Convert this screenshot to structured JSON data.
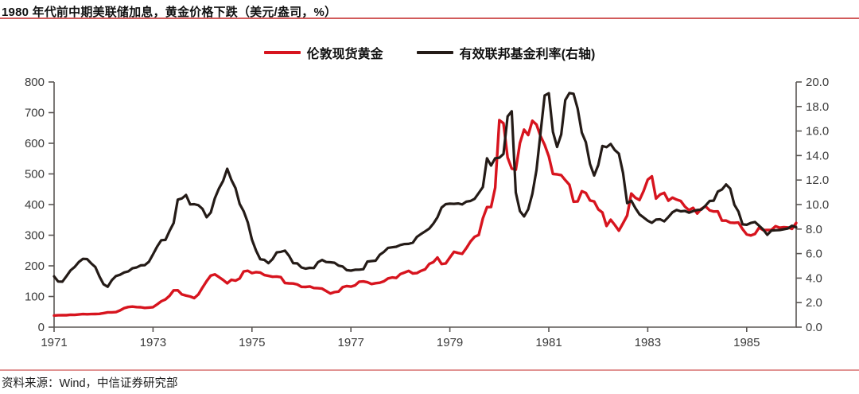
{
  "header": {
    "title": "1980 年代前中期美联储加息，黄金价格下跌（美元/盎司，%）"
  },
  "footer": {
    "source": "资料来源：Wind，中信证券研究部"
  },
  "legend": [
    {
      "label": "伦敦现货黄金",
      "color": "#d7141e"
    },
    {
      "label": "有效联邦基金利率(右轴)",
      "color": "#241b17"
    }
  ],
  "colors": {
    "accent_red": "#d7141e",
    "series_black": "#241b17",
    "title_rule": "#d15b5b",
    "footer_rule": "#e19392",
    "axis": "#5a5654",
    "tick_label": "#3a3a3a"
  },
  "chart_data": {
    "type": "line",
    "title": "1980 年代前中期美联储加息，黄金价格下跌（美元/盎司，%）",
    "grid": false,
    "legend_position": "top-center",
    "x": {
      "unit": "month",
      "start": "1971-01",
      "end": "1986-01",
      "tick_labels": [
        "1971",
        "1973",
        "1975",
        "1977",
        "1979",
        "1981",
        "1983",
        "1985"
      ]
    },
    "left_axis": {
      "min": 0,
      "max": 800,
      "tick_step": 100,
      "ticks": [
        0,
        100,
        200,
        300,
        400,
        500,
        600,
        700,
        800
      ],
      "applies_to": "伦敦现货黄金"
    },
    "right_axis": {
      "min": 0.0,
      "max": 20.0,
      "tick_step": 2.0,
      "ticks": [
        0.0,
        2.0,
        4.0,
        6.0,
        8.0,
        10.0,
        12.0,
        14.0,
        16.0,
        18.0,
        20.0
      ],
      "applies_to": "有效联邦基金利率(右轴)"
    },
    "series": [
      {
        "name": "伦敦现货黄金",
        "axis": "left",
        "color": "#d7141e",
        "values": [
          37.9,
          38.7,
          38.9,
          39.0,
          40.5,
          40.1,
          41.2,
          42.7,
          42.0,
          42.5,
          42.9,
          43.5,
          45.8,
          48.3,
          48.3,
          49.0,
          54.6,
          62.1,
          65.7,
          67.0,
          65.5,
          64.9,
          62.9,
          63.9,
          65.1,
          74.2,
          84.4,
          90.5,
          102.0,
          120.1,
          120.2,
          106.8,
          103.0,
          100.1,
          94.8,
          106.7,
          129.2,
          150.2,
          168.4,
          172.2,
          163.3,
          154.1,
          143.0,
          154.6,
          151.8,
          158.8,
          181.7,
          183.9,
          176.3,
          179.6,
          178.2,
          169.9,
          167.4,
          164.3,
          165.1,
          163.0,
          143.8,
          142.9,
          142.4,
          139.3,
          131.5,
          131.1,
          132.6,
          127.9,
          126.9,
          125.7,
          117.8,
          109.9,
          114.2,
          116.1,
          130.5,
          133.9,
          132.3,
          136.3,
          148.2,
          149.2,
          146.6,
          140.8,
          143.4,
          144.9,
          149.5,
          158.9,
          162.1,
          160.5,
          173.2,
          178.2,
          183.7,
          175.3,
          176.3,
          183.7,
          188.7,
          206.3,
          212.1,
          227.4,
          206.1,
          207.8,
          227.3,
          245.7,
          242.0,
          239.2,
          257.6,
          279.1,
          294.7,
          300.8,
          355.1,
          391.7,
          392.0,
          455.1,
          675.3,
          665.3,
          553.6,
          517.4,
          513.8,
          600.7,
          644.3,
          627.1,
          673.6,
          661.1,
          623.5,
          594.9,
          557.4,
          499.8,
          498.8,
          495.8,
          479.7,
          464.8,
          409.3,
          410.2,
          443.6,
          437.8,
          413.4,
          410.1,
          384.4,
          374.1,
          330.0,
          350.3,
          333.8,
          314.9,
          339.0,
          364.2,
          435.8,
          422.2,
          414.9,
          444.3,
          481.3,
          491.9,
          419.7,
          432.9,
          438.1,
          412.8,
          422.7,
          416.2,
          411.8,
          393.6,
          381.7,
          389.4,
          370.9,
          386.3,
          394.3,
          381.4,
          377.4,
          377.7,
          347.5,
          347.7,
          341.1,
          340.2,
          341.2,
          320.1,
          302.7,
          299.1,
          304.2,
          324.9,
          316.6,
          316.8,
          317.3,
          329.3,
          324.3,
          325.9,
          325.2,
          320.8,
          340.0
        ]
      },
      {
        "name": "有效联邦基金利率(右轴)",
        "axis": "right",
        "color": "#241b17",
        "values": [
          4.14,
          3.72,
          3.71,
          4.15,
          4.63,
          4.91,
          5.31,
          5.57,
          5.55,
          5.2,
          4.91,
          4.14,
          3.5,
          3.29,
          3.83,
          4.17,
          4.27,
          4.46,
          4.55,
          4.8,
          4.87,
          5.04,
          5.06,
          5.33,
          5.94,
          6.58,
          7.09,
          7.12,
          7.84,
          8.49,
          10.4,
          10.5,
          10.78,
          10.01,
          10.03,
          9.95,
          9.65,
          8.97,
          9.35,
          10.51,
          11.31,
          11.93,
          12.92,
          12.01,
          11.34,
          10.06,
          9.45,
          8.53,
          7.13,
          6.24,
          5.54,
          5.49,
          5.22,
          5.55,
          6.1,
          6.14,
          6.24,
          5.82,
          5.22,
          5.2,
          4.87,
          4.77,
          4.84,
          4.82,
          5.29,
          5.48,
          5.31,
          5.29,
          5.25,
          5.02,
          4.95,
          4.65,
          4.61,
          4.68,
          4.69,
          4.73,
          5.35,
          5.39,
          5.42,
          5.9,
          6.14,
          6.47,
          6.51,
          6.56,
          6.7,
          6.78,
          6.79,
          6.89,
          7.36,
          7.6,
          7.81,
          8.04,
          8.45,
          8.96,
          9.76,
          10.03,
          10.07,
          10.06,
          10.09,
          10.01,
          10.24,
          10.29,
          10.47,
          10.94,
          11.43,
          13.77,
          13.18,
          13.78,
          13.82,
          14.13,
          17.19,
          17.61,
          10.98,
          9.47,
          9.03,
          9.61,
          10.87,
          12.81,
          15.85,
          18.9,
          19.08,
          15.93,
          14.7,
          15.72,
          18.52,
          19.1,
          19.04,
          17.82,
          15.87,
          15.08,
          13.31,
          12.37,
          13.22,
          14.78,
          14.68,
          14.94,
          14.45,
          14.15,
          12.59,
          10.12,
          10.31,
          9.71,
          9.2,
          8.95,
          8.68,
          8.51,
          8.77,
          8.8,
          8.63,
          8.98,
          9.37,
          9.56,
          9.45,
          9.48,
          9.34,
          9.47,
          9.56,
          9.59,
          9.91,
          10.29,
          10.32,
          11.06,
          11.23,
          11.64,
          11.3,
          9.99,
          9.43,
          8.38,
          8.35,
          8.5,
          8.58,
          8.27,
          7.97,
          7.53,
          7.88,
          7.9,
          7.92,
          7.99,
          8.05,
          8.27,
          8.14
        ]
      }
    ]
  }
}
